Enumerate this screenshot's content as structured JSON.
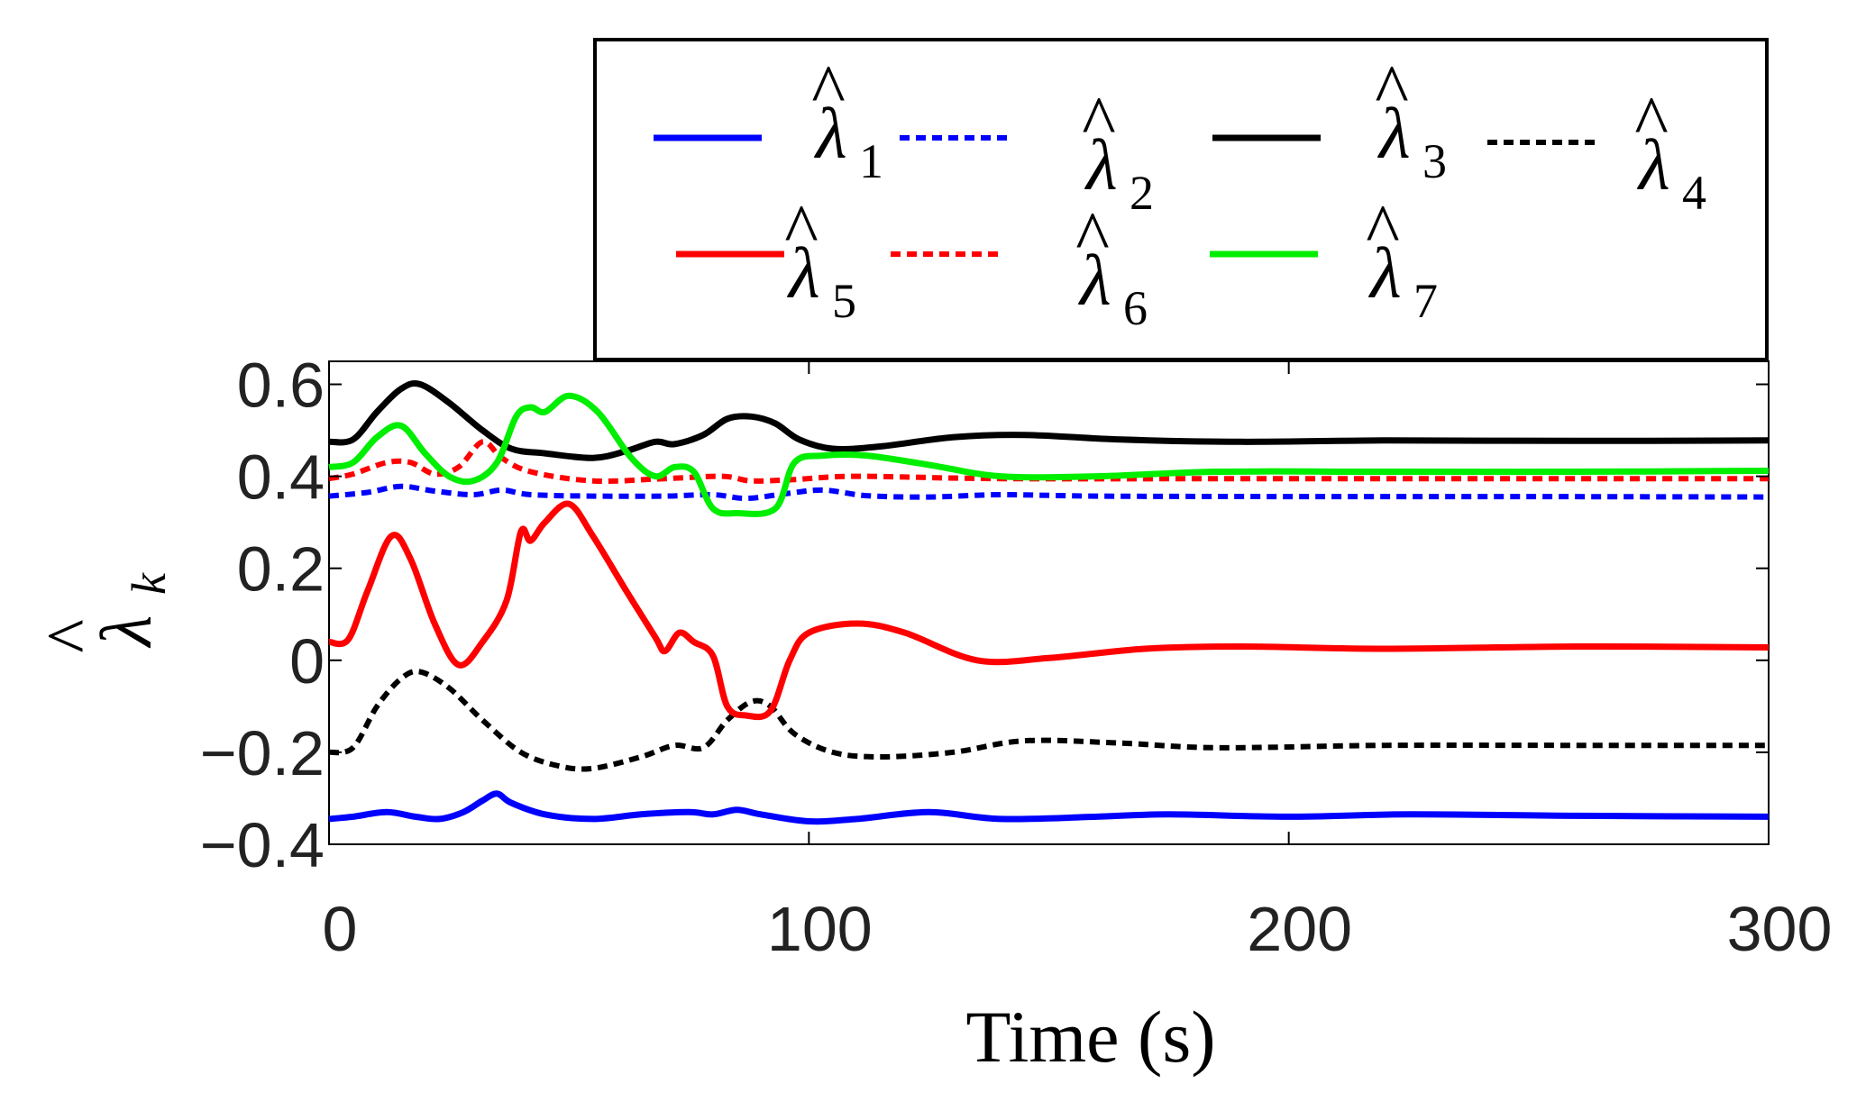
{
  "chart_data": {
    "type": "line",
    "xlabel": "Time (s)",
    "ylabel": {
      "symbol": "λ",
      "subscript": "k",
      "accent": "^"
    },
    "xlim": [
      0,
      300
    ],
    "ylim": [
      -0.4,
      0.65
    ],
    "xticks": [
      0,
      100,
      200,
      300
    ],
    "xtick_labels": [
      "0",
      "100",
      "200",
      "300"
    ],
    "yticks": [
      -0.4,
      -0.2,
      0,
      0.2,
      0.4,
      0.6
    ],
    "ytick_labels": [
      "−0.4",
      "−0.2",
      "0",
      "0.2",
      "0.4",
      "0.6"
    ],
    "grid": false,
    "legend_position": "top-right, outside above axes",
    "series": [
      {
        "name": "λ1",
        "symbol": "λ",
        "subscript": "1",
        "accent": "^",
        "color": "#0000ff",
        "style": "solid",
        "points": [
          [
            0,
            -0.345
          ],
          [
            5,
            -0.34
          ],
          [
            12,
            -0.33
          ],
          [
            18,
            -0.34
          ],
          [
            23,
            -0.345
          ],
          [
            28,
            -0.33
          ],
          [
            32,
            -0.305
          ],
          [
            35,
            -0.29
          ],
          [
            38,
            -0.31
          ],
          [
            45,
            -0.335
          ],
          [
            55,
            -0.345
          ],
          [
            65,
            -0.335
          ],
          [
            75,
            -0.33
          ],
          [
            80,
            -0.335
          ],
          [
            85,
            -0.325
          ],
          [
            90,
            -0.335
          ],
          [
            100,
            -0.35
          ],
          [
            110,
            -0.345
          ],
          [
            125,
            -0.33
          ],
          [
            140,
            -0.345
          ],
          [
            160,
            -0.34
          ],
          [
            175,
            -0.335
          ],
          [
            200,
            -0.34
          ],
          [
            225,
            -0.335
          ],
          [
            260,
            -0.338
          ],
          [
            300,
            -0.34
          ]
        ]
      },
      {
        "name": "λ2",
        "symbol": "λ",
        "subscript": "2",
        "accent": "^",
        "color": "#0000ff",
        "style": "dotted",
        "points": [
          [
            0,
            0.357
          ],
          [
            8,
            0.365
          ],
          [
            15,
            0.378
          ],
          [
            22,
            0.368
          ],
          [
            30,
            0.36
          ],
          [
            36,
            0.37
          ],
          [
            42,
            0.36
          ],
          [
            55,
            0.357
          ],
          [
            70,
            0.357
          ],
          [
            80,
            0.36
          ],
          [
            87,
            0.352
          ],
          [
            95,
            0.362
          ],
          [
            103,
            0.37
          ],
          [
            112,
            0.358
          ],
          [
            125,
            0.355
          ],
          [
            140,
            0.36
          ],
          [
            160,
            0.357
          ],
          [
            200,
            0.356
          ],
          [
            250,
            0.356
          ],
          [
            300,
            0.355
          ]
        ]
      },
      {
        "name": "λ3",
        "symbol": "λ",
        "subscript": "3",
        "accent": "^",
        "color": "#000000",
        "style": "solid",
        "points": [
          [
            0,
            0.475
          ],
          [
            5,
            0.48
          ],
          [
            10,
            0.54
          ],
          [
            15,
            0.59
          ],
          [
            19,
            0.6
          ],
          [
            25,
            0.56
          ],
          [
            32,
            0.5
          ],
          [
            38,
            0.46
          ],
          [
            45,
            0.45
          ],
          [
            55,
            0.44
          ],
          [
            62,
            0.455
          ],
          [
            68,
            0.475
          ],
          [
            72,
            0.47
          ],
          [
            78,
            0.49
          ],
          [
            83,
            0.525
          ],
          [
            88,
            0.53
          ],
          [
            93,
            0.515
          ],
          [
            98,
            0.48
          ],
          [
            105,
            0.46
          ],
          [
            115,
            0.465
          ],
          [
            130,
            0.485
          ],
          [
            145,
            0.49
          ],
          [
            165,
            0.48
          ],
          [
            190,
            0.475
          ],
          [
            220,
            0.478
          ],
          [
            260,
            0.477
          ],
          [
            300,
            0.478
          ]
        ]
      },
      {
        "name": "λ4",
        "symbol": "λ",
        "subscript": "4",
        "accent": "^",
        "color": "#000000",
        "style": "dotted",
        "points": [
          [
            0,
            -0.2
          ],
          [
            5,
            -0.19
          ],
          [
            10,
            -0.1
          ],
          [
            15,
            -0.04
          ],
          [
            19,
            -0.025
          ],
          [
            25,
            -0.06
          ],
          [
            32,
            -0.13
          ],
          [
            40,
            -0.2
          ],
          [
            48,
            -0.23
          ],
          [
            55,
            -0.235
          ],
          [
            65,
            -0.21
          ],
          [
            72,
            -0.185
          ],
          [
            78,
            -0.19
          ],
          [
            83,
            -0.13
          ],
          [
            88,
            -0.09
          ],
          [
            92,
            -0.1
          ],
          [
            97,
            -0.16
          ],
          [
            105,
            -0.2
          ],
          [
            115,
            -0.21
          ],
          [
            130,
            -0.2
          ],
          [
            145,
            -0.175
          ],
          [
            165,
            -0.18
          ],
          [
            185,
            -0.19
          ],
          [
            220,
            -0.185
          ],
          [
            260,
            -0.185
          ],
          [
            300,
            -0.185
          ]
        ]
      },
      {
        "name": "λ5",
        "symbol": "λ",
        "subscript": "5",
        "accent": "^",
        "color": "#ff0000",
        "style": "solid",
        "points": [
          [
            0,
            0.04
          ],
          [
            4,
            0.045
          ],
          [
            8,
            0.15
          ],
          [
            13,
            0.27
          ],
          [
            17,
            0.22
          ],
          [
            22,
            0.08
          ],
          [
            27,
            -0.01
          ],
          [
            32,
            0.04
          ],
          [
            37,
            0.13
          ],
          [
            40,
            0.28
          ],
          [
            42,
            0.26
          ],
          [
            45,
            0.3
          ],
          [
            50,
            0.34
          ],
          [
            55,
            0.27
          ],
          [
            62,
            0.15
          ],
          [
            68,
            0.05
          ],
          [
            70,
            0.02
          ],
          [
            73,
            0.06
          ],
          [
            76,
            0.04
          ],
          [
            80,
            0.01
          ],
          [
            83,
            -0.1
          ],
          [
            87,
            -0.12
          ],
          [
            92,
            -0.11
          ],
          [
            96,
            0.0
          ],
          [
            100,
            0.06
          ],
          [
            110,
            0.08
          ],
          [
            120,
            0.06
          ],
          [
            135,
            0.0
          ],
          [
            150,
            0.005
          ],
          [
            170,
            0.025
          ],
          [
            190,
            0.03
          ],
          [
            220,
            0.025
          ],
          [
            260,
            0.03
          ],
          [
            300,
            0.028
          ]
        ]
      },
      {
        "name": "λ6",
        "symbol": "λ",
        "subscript": "6",
        "accent": "^",
        "color": "#ff0000",
        "style": "dotted",
        "points": [
          [
            0,
            0.395
          ],
          [
            5,
            0.405
          ],
          [
            12,
            0.43
          ],
          [
            17,
            0.43
          ],
          [
            22,
            0.405
          ],
          [
            27,
            0.42
          ],
          [
            32,
            0.475
          ],
          [
            36,
            0.44
          ],
          [
            42,
            0.41
          ],
          [
            55,
            0.39
          ],
          [
            70,
            0.395
          ],
          [
            82,
            0.4
          ],
          [
            88,
            0.39
          ],
          [
            97,
            0.393
          ],
          [
            110,
            0.4
          ],
          [
            140,
            0.395
          ],
          [
            200,
            0.395
          ],
          [
            300,
            0.395
          ]
        ]
      },
      {
        "name": "λ7",
        "symbol": "λ",
        "subscript": "7",
        "accent": "^",
        "color": "#00ee00",
        "style": "solid",
        "points": [
          [
            0,
            0.42
          ],
          [
            5,
            0.43
          ],
          [
            10,
            0.485
          ],
          [
            15,
            0.51
          ],
          [
            20,
            0.45
          ],
          [
            25,
            0.4
          ],
          [
            30,
            0.39
          ],
          [
            35,
            0.43
          ],
          [
            39,
            0.53
          ],
          [
            42,
            0.55
          ],
          [
            45,
            0.54
          ],
          [
            50,
            0.575
          ],
          [
            56,
            0.54
          ],
          [
            63,
            0.44
          ],
          [
            68,
            0.4
          ],
          [
            72,
            0.42
          ],
          [
            76,
            0.41
          ],
          [
            80,
            0.33
          ],
          [
            85,
            0.32
          ],
          [
            93,
            0.33
          ],
          [
            97,
            0.43
          ],
          [
            103,
            0.445
          ],
          [
            112,
            0.445
          ],
          [
            125,
            0.425
          ],
          [
            140,
            0.4
          ],
          [
            160,
            0.4
          ],
          [
            185,
            0.41
          ],
          [
            220,
            0.41
          ],
          [
            260,
            0.41
          ],
          [
            300,
            0.412
          ]
        ]
      }
    ]
  }
}
